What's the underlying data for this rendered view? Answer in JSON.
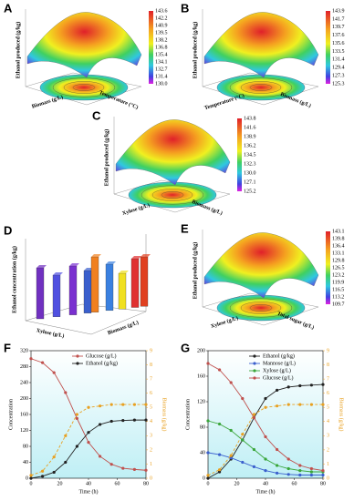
{
  "panels": [
    {
      "label": "A",
      "z_label": "Ethanol produced (g/kg)",
      "x_label": "Biomass (g/L)",
      "y_label": "Temperature (°C)",
      "colorbar": [
        "143.6",
        "142.2",
        "140.9",
        "139.5",
        "138.2",
        "136.8",
        "135.4",
        "134.1",
        "132.7",
        "131.4",
        "130.0"
      ]
    },
    {
      "label": "B",
      "z_label": "Ethanol produced (g/kg)",
      "x_label": "Temperature (°C)",
      "y_label": "Biomass (g/L)",
      "colorbar": [
        "143.9",
        "141.7",
        "139.7",
        "137.6",
        "135.6",
        "133.5",
        "131.4",
        "129.4",
        "127.3",
        "125.3"
      ]
    },
    {
      "label": "C",
      "z_label": "Ethanol produced (g/kg)",
      "x_label": "Xylose (g/L)",
      "y_label": "Biomass (g/L)",
      "colorbar": [
        "143.8",
        "141.6",
        "138.9",
        "136.2",
        "134.5",
        "132.3",
        "130.0",
        "127.1",
        "125.2"
      ]
    },
    {
      "label": "E",
      "z_label": "Ethanol produced (g/kg)",
      "x_label": "Xylose (g/L)",
      "y_label": "Total sugar (g/L)",
      "colorbar": [
        "143.1",
        "139.8",
        "136.4",
        "133.1",
        "129.8",
        "126.5",
        "123.2",
        "119.9",
        "116.5",
        "113.2",
        "109.7"
      ]
    }
  ],
  "bars3d": {
    "label": "D",
    "z_label": "Ethanol concentration (g/kg)",
    "x_label": "Xylose (g/L)",
    "y_label": "Biomass (g/L)"
  },
  "chart_data": [
    {
      "type": "line",
      "label": "F",
      "x_label": "Time (h)",
      "y_label": "Concentration",
      "y2_label": "Biomass (g/kg)",
      "x": [
        0,
        8,
        16,
        24,
        32,
        40,
        48,
        56,
        64,
        72,
        80
      ],
      "xlim": [
        0,
        80
      ],
      "xticks": [
        0,
        20,
        40,
        60,
        80
      ],
      "ylim": [
        0,
        320
      ],
      "yticks": [
        0,
        40,
        80,
        120,
        160,
        200,
        240,
        280,
        320
      ],
      "y2lim": [
        0,
        9
      ],
      "y2ticks": [
        0,
        1,
        2,
        3,
        4,
        5,
        6,
        7,
        8,
        9
      ],
      "series": [
        {
          "name": "Glucose (g/L)",
          "color": "#c0504d",
          "values": [
            300,
            290,
            265,
            215,
            150,
            90,
            55,
            35,
            25,
            22,
            20
          ]
        },
        {
          "name": "Ethanol (g/kg)",
          "color": "#222222",
          "values": [
            0,
            5,
            15,
            40,
            80,
            115,
            135,
            143,
            145,
            146,
            146
          ]
        },
        {
          "name": "Biomass (g/kg)",
          "color": "#e8a020",
          "axis": "y2",
          "dashed": true,
          "values": [
            0.2,
            0.5,
            1.5,
            3,
            4.5,
            5,
            5.1,
            5.2,
            5.2,
            5.2,
            5.2
          ]
        }
      ]
    },
    {
      "type": "line",
      "label": "G",
      "x_label": "Time (h)",
      "y_label": "Concentration",
      "y2_label": "Biomass (g/kg)",
      "x": [
        0,
        8,
        16,
        24,
        32,
        40,
        48,
        56,
        64,
        72,
        80
      ],
      "xlim": [
        0,
        80
      ],
      "xticks": [
        0,
        20,
        40,
        60,
        80
      ],
      "ylim": [
        0,
        200
      ],
      "yticks": [
        0,
        40,
        80,
        120,
        160,
        200
      ],
      "y2lim": [
        0,
        9
      ],
      "y2ticks": [
        0,
        1,
        2,
        3,
        4,
        5,
        6,
        7,
        8,
        9
      ],
      "series": [
        {
          "name": "Ethanol (g/kg)",
          "color": "#222222",
          "values": [
            0,
            10,
            30,
            60,
            95,
            125,
            138,
            143,
            145,
            146,
            147
          ]
        },
        {
          "name": "Mannose (g/L)",
          "color": "#3a5fcd",
          "values": [
            40,
            37,
            32,
            25,
            18,
            12,
            8,
            6,
            5,
            5,
            5
          ]
        },
        {
          "name": "Xylose (g/L)",
          "color": "#3aa63a",
          "values": [
            90,
            85,
            75,
            60,
            45,
            30,
            20,
            15,
            12,
            10,
            10
          ]
        },
        {
          "name": "Glucose (g/L)",
          "color": "#c0504d",
          "values": [
            180,
            170,
            150,
            125,
            95,
            65,
            45,
            30,
            20,
            15,
            12
          ]
        },
        {
          "name": "Biomass (g/kg)",
          "color": "#e8a020",
          "axis": "y2",
          "dashed": true,
          "values": [
            0.2,
            0.6,
            1.6,
            3.1,
            4.5,
            5,
            5.1,
            5.2,
            5.2,
            5.2,
            5.2
          ]
        }
      ]
    }
  ]
}
